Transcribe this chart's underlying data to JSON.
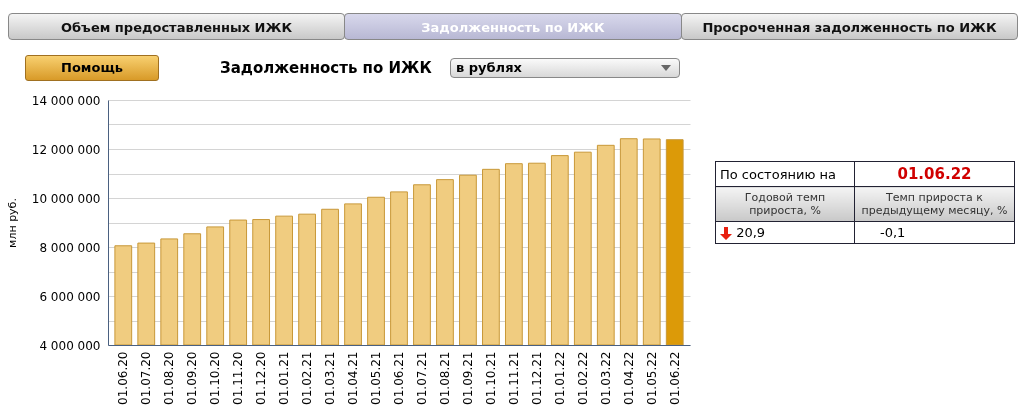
{
  "chart_data": {
    "type": "bar",
    "title": "Задолженность по ИЖК",
    "ylabel": "млн руб.",
    "categories": [
      "01.06.20",
      "01.07.20",
      "01.08.20",
      "01.09.20",
      "01.10.20",
      "01.11.20",
      "01.12.20",
      "01.01.21",
      "01.02.21",
      "01.03.21",
      "01.04.21",
      "01.05.21",
      "01.06.21",
      "01.07.21",
      "01.08.21",
      "01.09.21",
      "01.10.21",
      "01.11.21",
      "01.12.21",
      "01.01.22",
      "01.02.22",
      "01.03.22",
      "01.04.22",
      "01.05.22",
      "01.06.22"
    ],
    "values": [
      8050000,
      8160000,
      8330000,
      8540000,
      8820000,
      9100000,
      9120000,
      9260000,
      9340000,
      9540000,
      9760000,
      10030000,
      10250000,
      10540000,
      10750000,
      10930000,
      11170000,
      11400000,
      11420000,
      11730000,
      11870000,
      12150000,
      12420000,
      12410000,
      12380000
    ],
    "colors": [
      "#f0cc80",
      "#f0cc80",
      "#f0cc80",
      "#f0cc80",
      "#f0cc80",
      "#f0cc80",
      "#f0cc80",
      "#f0cc80",
      "#f0cc80",
      "#f0cc80",
      "#f0cc80",
      "#f0cc80",
      "#f0cc80",
      "#f0cc80",
      "#f0cc80",
      "#f0cc80",
      "#f0cc80",
      "#f0cc80",
      "#f0cc80",
      "#f0cc80",
      "#f0cc80",
      "#f0cc80",
      "#f0cc80",
      "#f0cc80",
      "#dc9a08"
    ],
    "ylim": [
      4000000,
      14000000
    ],
    "yticks": [
      {
        "value": 4000000,
        "label": "4 000 000"
      },
      {
        "value": 5000000,
        "label": null
      },
      {
        "value": 6000000,
        "label": "6 000 000"
      },
      {
        "value": 7000000,
        "label": null
      },
      {
        "value": 8000000,
        "label": "8 000 000"
      },
      {
        "value": 9000000,
        "label": null
      },
      {
        "value": 10000000,
        "label": "10 000 000"
      },
      {
        "value": 11000000,
        "label": null
      },
      {
        "value": 12000000,
        "label": "12 000 000"
      },
      {
        "value": 13000000,
        "label": null
      },
      {
        "value": 14000000,
        "label": "14 000 000"
      }
    ],
    "grid": "y",
    "legend": false,
    "annotations": [
      "Объем предоставленных ИЖК",
      "Задолженность по ИЖК",
      "Просроченная задолженность по ИЖК",
      "Помощь",
      "в рублях",
      "По состоянию на",
      "01.06.22",
      "Годовой темп прироста, %",
      "Темп прироста к предыдущему месяцу, %",
      "20,9",
      "-0,1"
    ]
  }
}
